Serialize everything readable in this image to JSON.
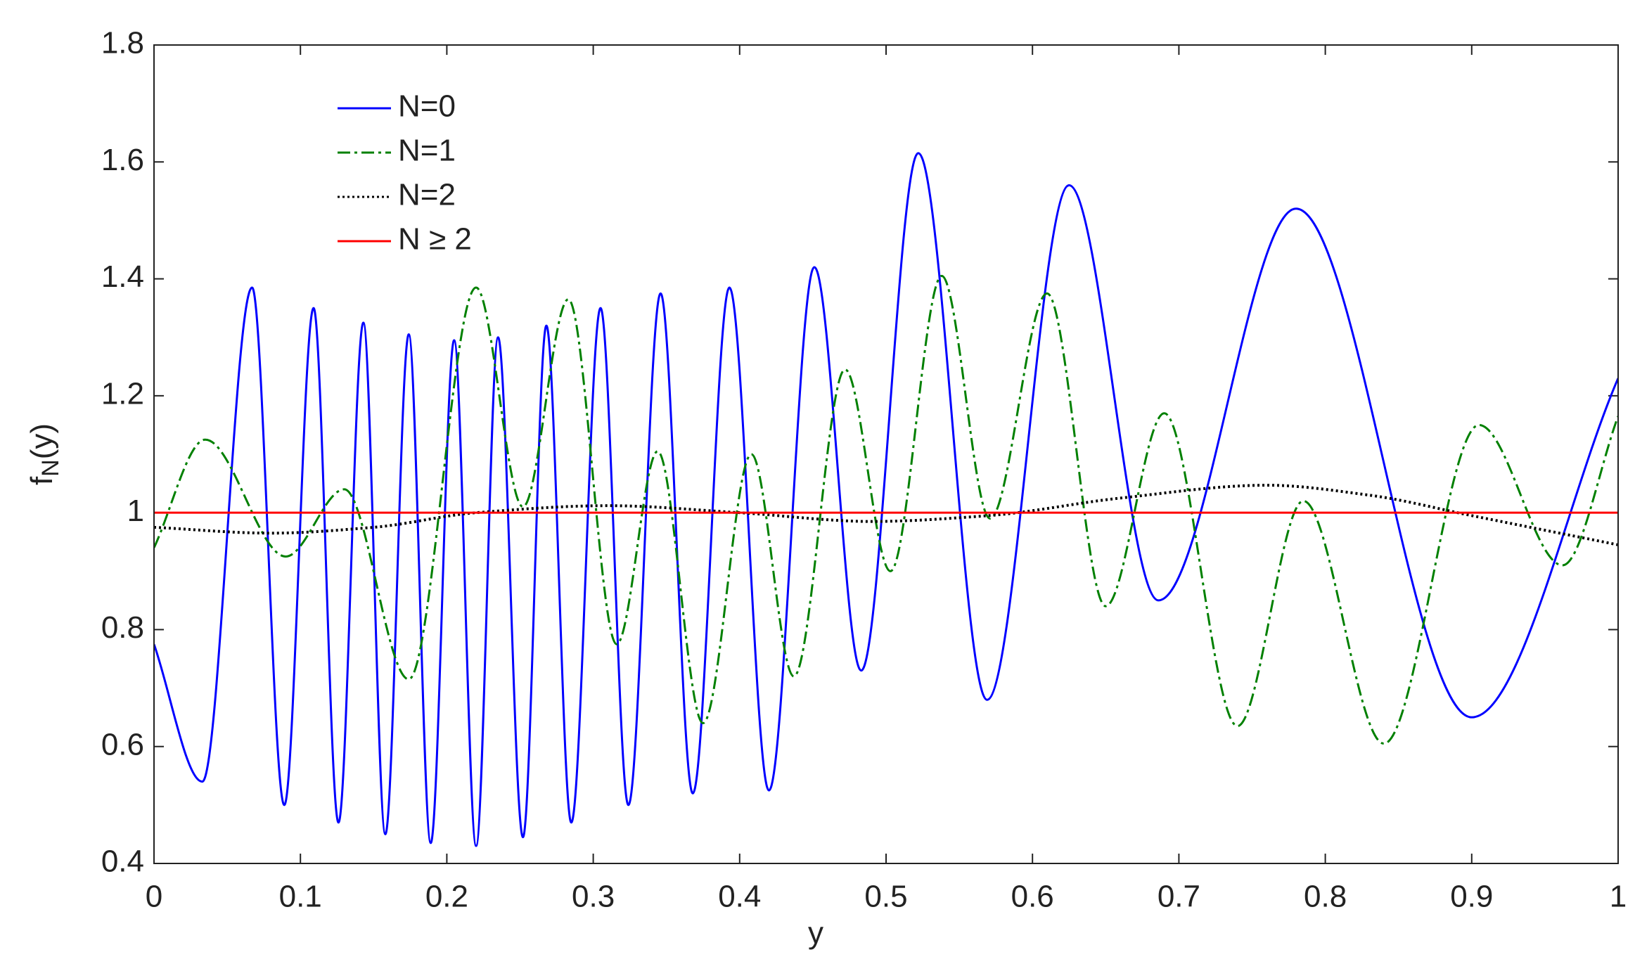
{
  "chart_data": {
    "type": "line",
    "xlabel": "y",
    "ylabel": {
      "base": "f",
      "sub": "N",
      "rest": "(y)"
    },
    "xlim": [
      0,
      1
    ],
    "xticks": [
      0,
      0.1,
      0.2,
      0.3,
      0.4,
      0.5,
      0.6,
      0.7,
      0.8,
      0.9,
      1
    ],
    "ylim": [
      0.4,
      1.8
    ],
    "yticks": [
      0.4,
      0.6,
      0.8,
      1,
      1.2,
      1.4,
      1.6,
      1.8
    ],
    "legend": "upper left",
    "series": [
      {
        "name": "N=0",
        "color": "#0000ff",
        "style": "solid",
        "x": [
          0,
          0.033,
          0.067,
          0.089,
          0.109,
          0.126,
          0.143,
          0.158,
          0.174,
          0.189,
          0.205,
          0.22,
          0.235,
          0.252,
          0.268,
          0.285,
          0.305,
          0.324,
          0.346,
          0.368,
          0.393,
          0.42,
          0.451,
          0.483,
          0.522,
          0.569,
          0.625,
          0.686,
          0.78,
          0.9,
          1
        ],
        "values": [
          0.775,
          0.54,
          1.385,
          0.5,
          1.35,
          0.47,
          1.325,
          0.45,
          1.305,
          0.435,
          1.295,
          0.43,
          1.3,
          0.445,
          1.32,
          0.47,
          1.35,
          0.5,
          1.375,
          0.52,
          1.385,
          0.525,
          1.42,
          0.73,
          1.615,
          0.68,
          1.56,
          0.85,
          1.52,
          0.65,
          1.23
        ]
      },
      {
        "name": "N=1",
        "color": "#008000",
        "style": "dashdot",
        "x": [
          0,
          0.035,
          0.09,
          0.13,
          0.174,
          0.22,
          0.252,
          0.283,
          0.316,
          0.344,
          0.375,
          0.408,
          0.437,
          0.472,
          0.503,
          0.538,
          0.571,
          0.61,
          0.65,
          0.69,
          0.74,
          0.785,
          0.84,
          0.905,
          0.962,
          1
        ],
        "values": [
          0.94,
          1.125,
          0.925,
          1.04,
          0.715,
          1.385,
          1.01,
          1.365,
          0.775,
          1.105,
          0.64,
          1.1,
          0.72,
          1.245,
          0.9,
          1.405,
          0.99,
          1.375,
          0.84,
          1.17,
          0.635,
          1.02,
          0.605,
          1.15,
          0.91,
          1.165
        ]
      },
      {
        "name": "N=2",
        "color": "#000000",
        "style": "dotted",
        "x": [
          0,
          0.08,
          0.15,
          0.22,
          0.31,
          0.4,
          0.49,
          0.57,
          0.66,
          0.76,
          0.83,
          0.9,
          1
        ],
        "values": [
          0.975,
          0.965,
          0.975,
          1.0,
          1.012,
          1.0,
          0.985,
          0.995,
          1.025,
          1.047,
          1.03,
          0.995,
          0.945
        ]
      },
      {
        "name": "N ≥ 2",
        "color": "#ff0000",
        "style": "solid",
        "x": [
          0,
          1
        ],
        "values": [
          1,
          1
        ]
      }
    ]
  }
}
